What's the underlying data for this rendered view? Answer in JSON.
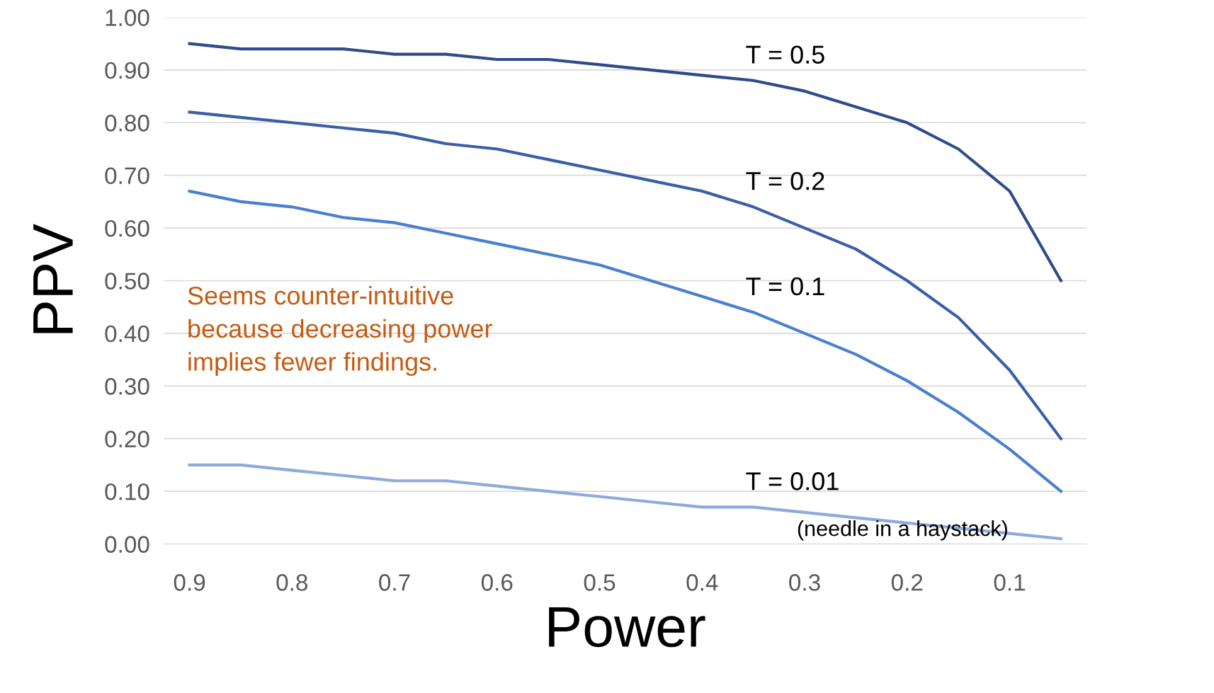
{
  "chart_data": {
    "type": "line",
    "xlabel": "Power",
    "ylabel": "PPV",
    "x": [
      0.9,
      0.85,
      0.8,
      0.75,
      0.7,
      0.65,
      0.6,
      0.55,
      0.5,
      0.45,
      0.4,
      0.35,
      0.3,
      0.25,
      0.2,
      0.15,
      0.1,
      0.05
    ],
    "xlim": [
      0.925,
      0.025
    ],
    "xticks": [
      0.9,
      0.8,
      0.7,
      0.6,
      0.5,
      0.4,
      0.3,
      0.2,
      0.1
    ],
    "ylim": [
      0,
      1.0
    ],
    "yticks": [
      {
        "value": 0,
        "label": "0.00"
      },
      {
        "value": 0.1,
        "label": "0.10"
      },
      {
        "value": 0.2,
        "label": "0.20"
      },
      {
        "value": 0.3,
        "label": "0.30"
      },
      {
        "value": 0.4,
        "label": "0.40"
      },
      {
        "value": 0.5,
        "label": "0.50"
      },
      {
        "value": 0.6,
        "label": "0.60"
      },
      {
        "value": 0.7,
        "label": "0.70"
      },
      {
        "value": 0.8,
        "label": "0.80"
      },
      {
        "value": 0.9,
        "label": "0.90"
      },
      {
        "value": 1.0,
        "label": "1.00"
      }
    ],
    "grid": "y",
    "legend": false,
    "marker": "none",
    "line_style": "solid",
    "series": [
      {
        "name": "T = 0.5",
        "color": "#2f4b8a",
        "values": [
          0.95,
          0.94,
          0.94,
          0.94,
          0.93,
          0.93,
          0.92,
          0.92,
          0.91,
          0.9,
          0.89,
          0.88,
          0.86,
          0.83,
          0.8,
          0.75,
          0.67,
          0.5
        ]
      },
      {
        "name": "T = 0.2",
        "color": "#3a5ea8",
        "values": [
          0.82,
          0.81,
          0.8,
          0.79,
          0.78,
          0.76,
          0.75,
          0.73,
          0.71,
          0.69,
          0.67,
          0.64,
          0.6,
          0.56,
          0.5,
          0.43,
          0.33,
          0.2
        ]
      },
      {
        "name": "T = 0.1",
        "color": "#4a7fd0",
        "values": [
          0.67,
          0.65,
          0.64,
          0.62,
          0.61,
          0.59,
          0.57,
          0.55,
          0.53,
          0.5,
          0.47,
          0.44,
          0.4,
          0.36,
          0.31,
          0.25,
          0.18,
          0.1
        ]
      },
      {
        "name": "T = 0.01",
        "color": "#8eaadb",
        "values": [
          0.15,
          0.15,
          0.14,
          0.13,
          0.12,
          0.12,
          0.11,
          0.1,
          0.09,
          0.08,
          0.07,
          0.07,
          0.06,
          0.05,
          0.04,
          0.03,
          0.02,
          0.01
        ]
      }
    ],
    "annotations": [
      {
        "text": "(needle in a haystack)",
        "x": 0.3,
        "y": 0.06
      },
      "Seems counter-intuitive\nbecause decreasing power\nimplies fewer findings."
    ]
  }
}
